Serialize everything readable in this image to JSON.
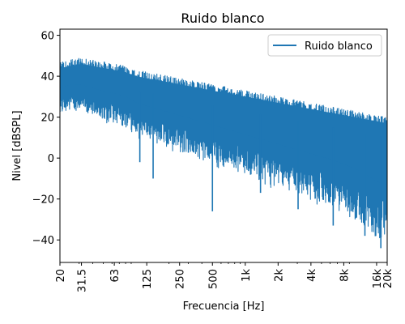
{
  "chart_data": {
    "type": "line",
    "title": "Ruido blanco",
    "xlabel": "Frecuencia [Hz]",
    "ylabel": "Nivel [dBSPL]",
    "xscale": "log",
    "xlim": [
      20,
      20000
    ],
    "ylim": [
      -51,
      63
    ],
    "grid": false,
    "legend": {
      "position": "top-right"
    },
    "xticks": [
      {
        "value": 20,
        "label": "20"
      },
      {
        "value": 31.5,
        "label": "31.5"
      },
      {
        "value": 63,
        "label": "63"
      },
      {
        "value": 125,
        "label": "125"
      },
      {
        "value": 250,
        "label": "250"
      },
      {
        "value": 500,
        "label": "500"
      },
      {
        "value": 1000,
        "label": "1k"
      },
      {
        "value": 2000,
        "label": "2k"
      },
      {
        "value": 4000,
        "label": "4k"
      },
      {
        "value": 8000,
        "label": "8k"
      },
      {
        "value": 16000,
        "label": "16k"
      },
      {
        "value": 20000,
        "label": "20k"
      }
    ],
    "yticks": [
      -40,
      -20,
      0,
      20,
      40,
      60
    ],
    "series": [
      {
        "name": "Ruido blanco",
        "color": "#1f77b4",
        "x": [
          20,
          25,
          31.5,
          40,
          50,
          63,
          80,
          100,
          125,
          160,
          200,
          250,
          315,
          400,
          500,
          630,
          800,
          1000,
          1250,
          1600,
          2000,
          2500,
          3150,
          4000,
          5000,
          6300,
          8000,
          10000,
          12500,
          16000,
          20000
        ],
        "upper": [
          47,
          48,
          49,
          48,
          47,
          46,
          45,
          43,
          42,
          41,
          40,
          39,
          38,
          37,
          36,
          35,
          34,
          33,
          32,
          31,
          30,
          29,
          28,
          27,
          26,
          25,
          24,
          23,
          22,
          21,
          20
        ],
        "lower": [
          24,
          26,
          25,
          23,
          21,
          20,
          18,
          14,
          12,
          10,
          8,
          6,
          4,
          2,
          0,
          -2,
          -4,
          -6,
          -8,
          -10,
          -12,
          -14,
          -16,
          -18,
          -20,
          -22,
          -25,
          -28,
          -32,
          -38,
          -40
        ],
        "dips": [
          {
            "x": 108,
            "y": -2
          },
          {
            "x": 143,
            "y": -10
          },
          {
            "x": 500,
            "y": -26
          },
          {
            "x": 1380,
            "y": -17
          },
          {
            "x": 3050,
            "y": -25
          },
          {
            "x": 6400,
            "y": -33
          },
          {
            "x": 12500,
            "y": -38
          },
          {
            "x": 17500,
            "y": -44
          }
        ]
      }
    ]
  }
}
